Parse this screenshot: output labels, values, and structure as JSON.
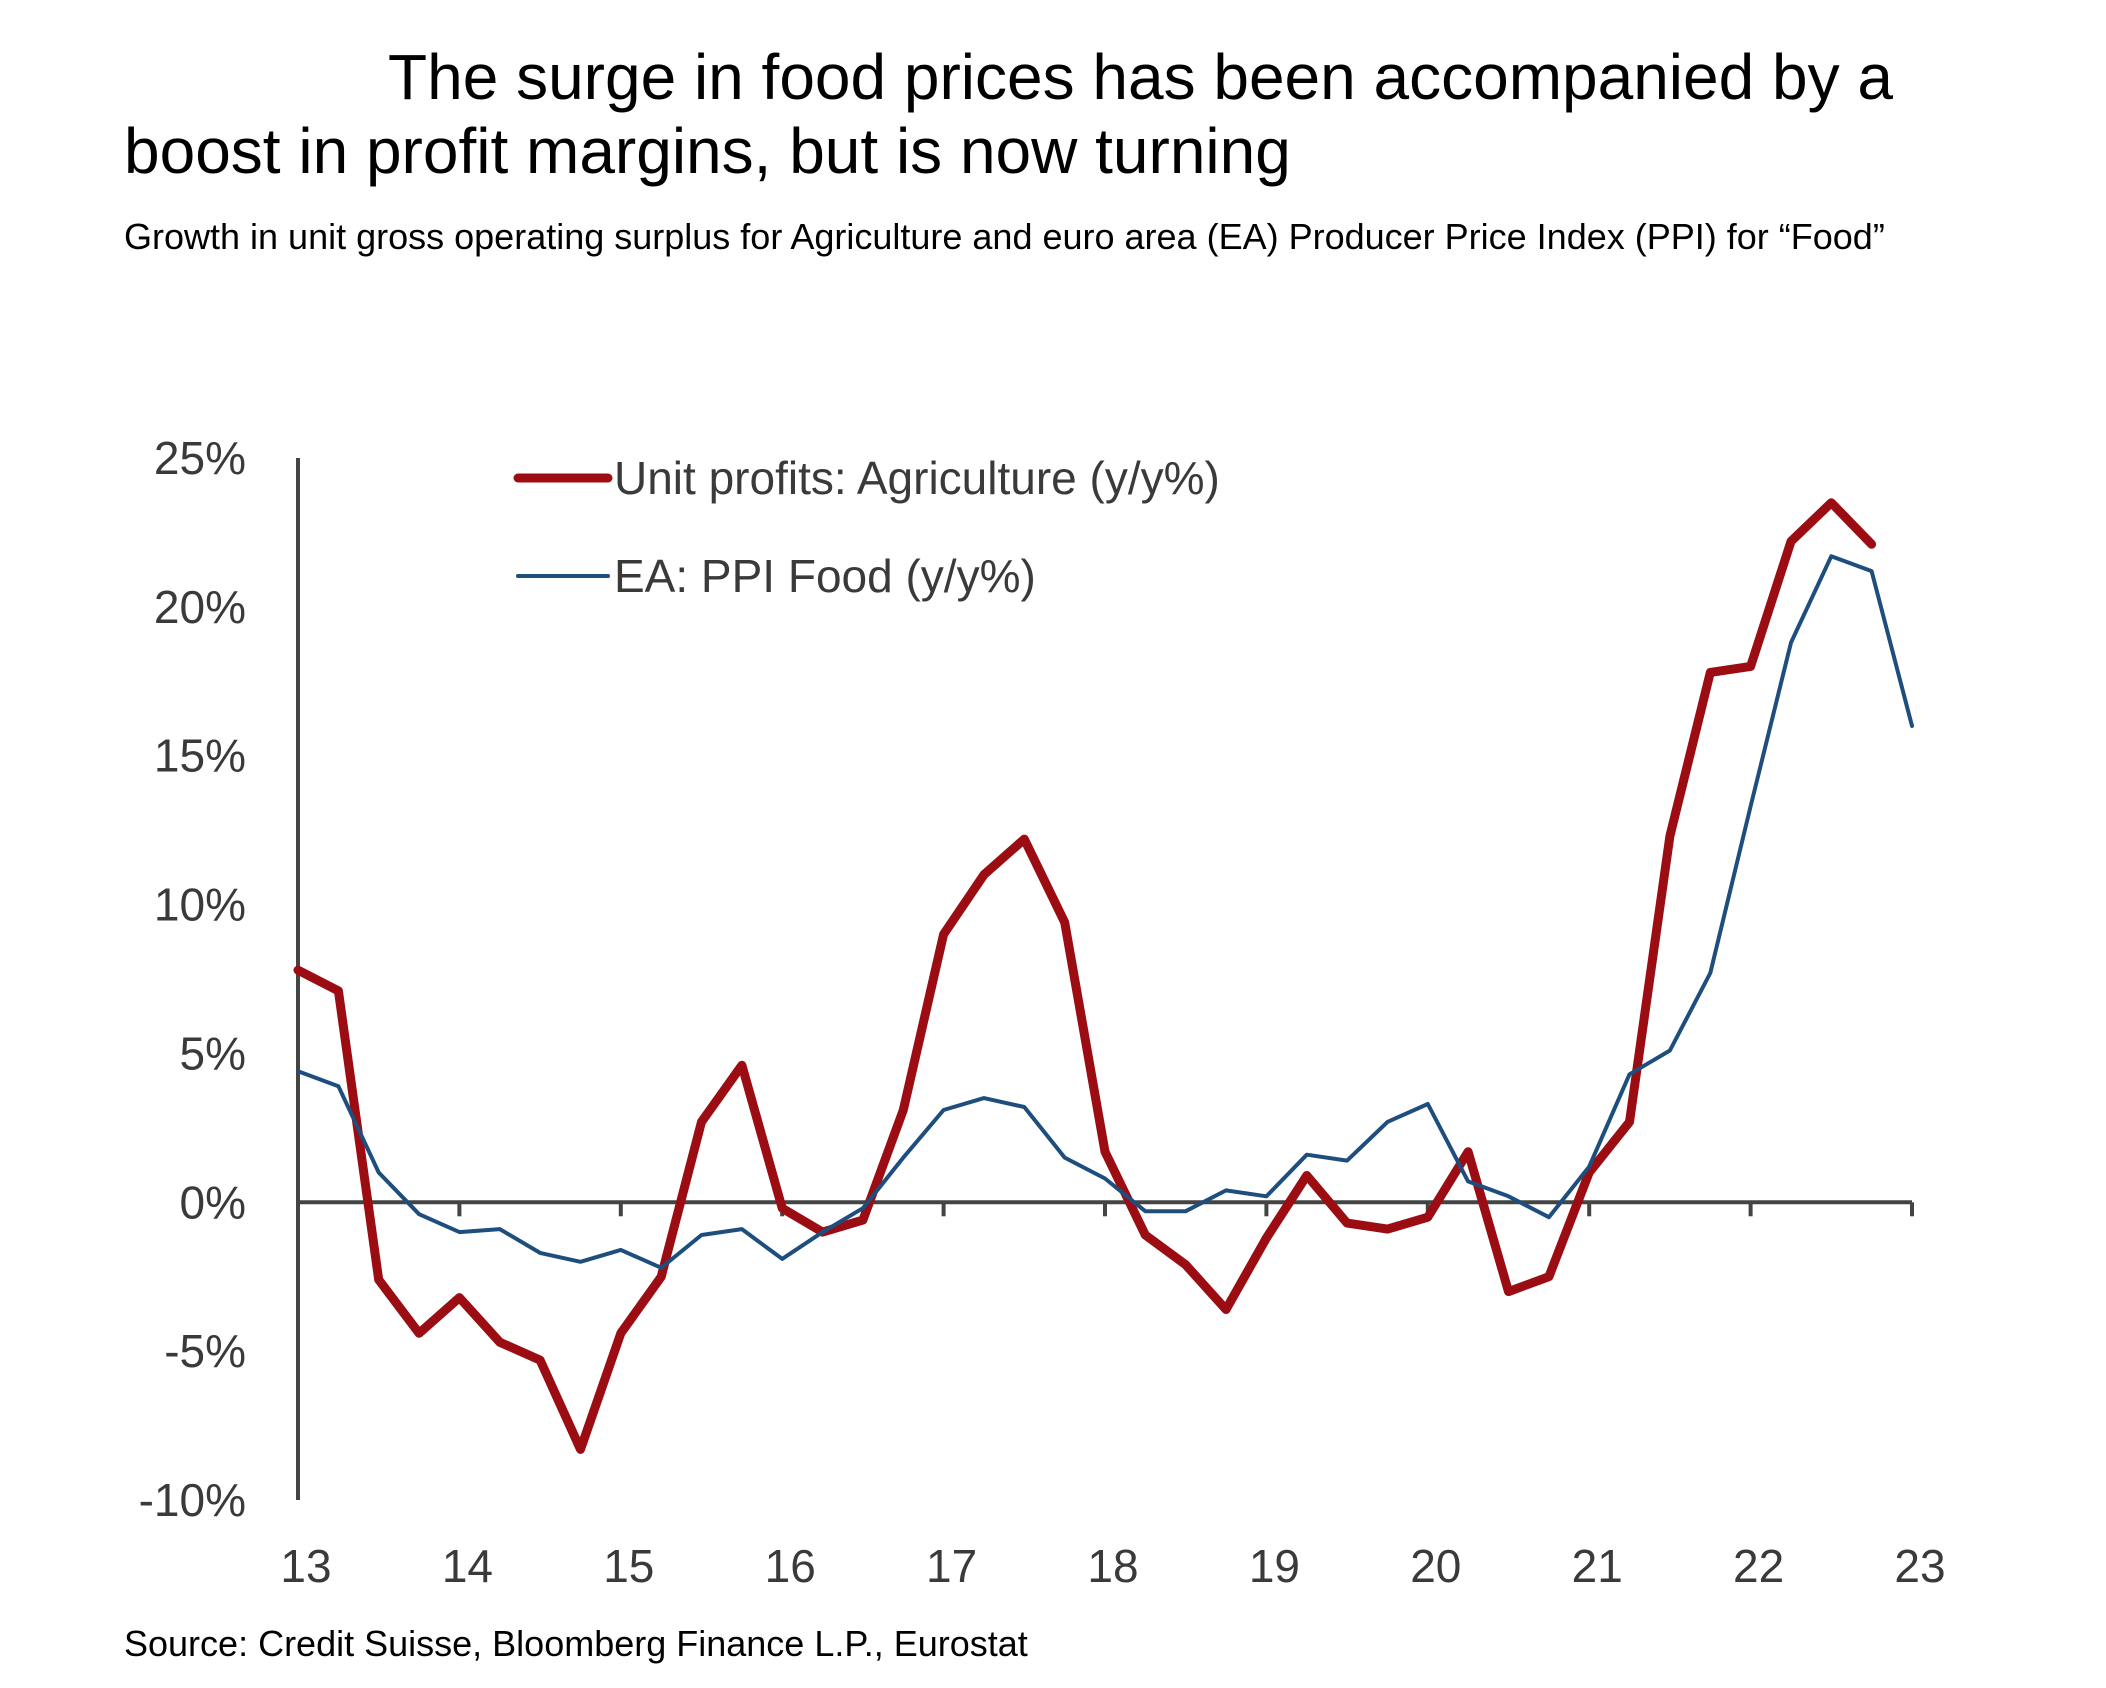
{
  "header": {
    "title": "The surge in food prices has been accompanied by a boost in profit margins, but is now turning",
    "subtitle": "Growth in unit gross operating surplus for Agriculture and euro area (EA) Producer Price Index (PPI) for “Food”"
  },
  "footer": {
    "source": "Source: Credit Suisse, Bloomberg Finance L.P., Eurostat"
  },
  "chart_data": {
    "type": "line",
    "x_tick_labels": [
      "13",
      "14",
      "15",
      "16",
      "17",
      "18",
      "19",
      "20",
      "21",
      "22",
      "23"
    ],
    "y_tick_labels": [
      "25%",
      "20%",
      "15%",
      "10%",
      "5%",
      "0%",
      "-5%",
      "-10%"
    ],
    "ylim": [
      -10,
      25
    ],
    "xlim": [
      2013,
      2023
    ],
    "grid": false,
    "legend_position": "top-left",
    "series": [
      {
        "name": "Unit profits: Agriculture (y/y%)",
        "color": "#9b0d12",
        "x": [
          2013.0,
          2013.25,
          2013.5,
          2013.75,
          2014.0,
          2014.25,
          2014.5,
          2014.75,
          2015.0,
          2015.25,
          2015.5,
          2015.75,
          2016.0,
          2016.25,
          2016.5,
          2016.75,
          2017.0,
          2017.25,
          2017.5,
          2017.75,
          2018.0,
          2018.25,
          2018.5,
          2018.75,
          2019.0,
          2019.25,
          2019.5,
          2019.75,
          2020.0,
          2020.25,
          2020.5,
          2020.75,
          2021.0,
          2021.25,
          2021.5,
          2021.75,
          2022.0,
          2022.25,
          2022.5,
          2022.75
        ],
        "values": [
          7.8,
          7.1,
          -2.6,
          -4.4,
          -3.2,
          -4.7,
          -5.3,
          -8.3,
          -4.4,
          -2.5,
          2.7,
          4.6,
          -0.2,
          -1.0,
          -0.6,
          3.1,
          9.0,
          11.0,
          12.2,
          9.4,
          1.7,
          -1.1,
          -2.1,
          -3.6,
          -1.2,
          0.9,
          -0.7,
          -0.9,
          -0.5,
          1.7,
          -3.0,
          -2.5,
          1.0,
          2.7,
          12.3,
          17.8,
          18.0,
          22.2,
          23.5,
          22.1
        ]
      },
      {
        "name": "EA: PPI Food (y/y%)",
        "color": "#1d4e7e",
        "x": [
          2013.0,
          2013.25,
          2013.5,
          2013.75,
          2014.0,
          2014.25,
          2014.5,
          2014.75,
          2015.0,
          2015.25,
          2015.5,
          2015.75,
          2016.0,
          2016.25,
          2016.5,
          2016.75,
          2017.0,
          2017.25,
          2017.5,
          2017.75,
          2018.0,
          2018.25,
          2018.5,
          2018.75,
          2019.0,
          2019.25,
          2019.5,
          2019.75,
          2020.0,
          2020.25,
          2020.5,
          2020.75,
          2021.0,
          2021.25,
          2021.5,
          2021.75,
          2022.0,
          2022.25,
          2022.5,
          2022.75,
          2023.0
        ],
        "values": [
          4.4,
          3.9,
          1.0,
          -0.4,
          -1.0,
          -0.9,
          -1.7,
          -2.0,
          -1.6,
          -2.2,
          -1.1,
          -0.9,
          -1.9,
          -1.0,
          -0.2,
          1.5,
          3.1,
          3.5,
          3.2,
          1.5,
          0.8,
          -0.3,
          -0.3,
          0.4,
          0.2,
          1.6,
          1.4,
          2.7,
          3.3,
          0.7,
          0.2,
          -0.5,
          1.2,
          4.3,
          5.1,
          7.7,
          13.3,
          18.8,
          21.7,
          21.2,
          16.0
        ]
      }
    ]
  }
}
